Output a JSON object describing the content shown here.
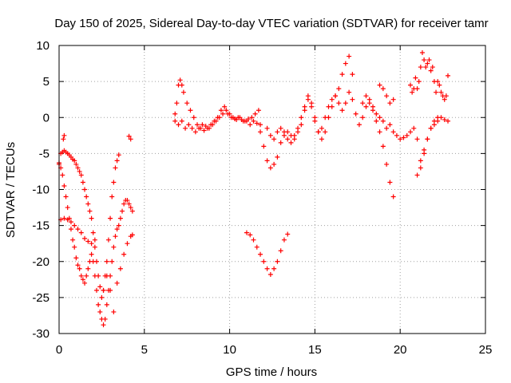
{
  "chart_data": {
    "type": "scatter",
    "title": "Day 150 of 2025, Sidereal Day-to-day VTEC variation (SDTVAR) for receiver tamr",
    "xlabel": "GPS time / hours",
    "ylabel": "SDTVAR / TECUs",
    "xlim": [
      0,
      25
    ],
    "ylim": [
      -30,
      10
    ],
    "x_ticks": [
      0,
      5,
      10,
      15,
      20,
      25
    ],
    "y_ticks": [
      -30,
      -25,
      -20,
      -15,
      -10,
      -5,
      0,
      5,
      10
    ],
    "grid": true,
    "marker": "plus",
    "color": "#ff0000",
    "series": [
      {
        "x": [
          0.0,
          0.1,
          0.2,
          0.3,
          0.4,
          0.5,
          0.6,
          0.7,
          0.8,
          0.9,
          1.0,
          1.1,
          1.2,
          1.3,
          1.4,
          1.5,
          1.6,
          1.7,
          1.8,
          1.9,
          2.0,
          2.1,
          2.2,
          2.3,
          2.4,
          2.5,
          2.6,
          2.7,
          2.8,
          2.9,
          3.0,
          3.1,
          3.2,
          3.3,
          3.4,
          3.5
        ],
        "y": [
          -6.5,
          -5.0,
          -4.8,
          -4.6,
          -4.8,
          -5.0,
          -5.2,
          -5.5,
          -5.8,
          -6.0,
          -6.5,
          -7.0,
          -7.5,
          -8.0,
          -9.0,
          -10.0,
          -11.0,
          -12.0,
          -13.0,
          -14.0,
          -16.0,
          -18.0,
          -20.0,
          -22.0,
          -23.5,
          -25.0,
          -24.0,
          -22.0,
          -20.0,
          -17.0,
          -14.0,
          -11.0,
          -9.0,
          -7.0,
          -6.0,
          -5.2
        ]
      },
      {
        "x": [
          0.0,
          0.1,
          0.2,
          0.3,
          0.4,
          0.5,
          0.6,
          0.7,
          0.8,
          0.9,
          1.0,
          1.1,
          1.2,
          1.3,
          1.4,
          1.5,
          1.6,
          1.7,
          1.8,
          1.9,
          2.0,
          2.1,
          2.2,
          2.3,
          2.4,
          2.5,
          2.6,
          2.7,
          2.8,
          2.9,
          3.0,
          3.1,
          3.2,
          3.3,
          3.4,
          3.5,
          3.6,
          3.7,
          3.8,
          3.9,
          4.0,
          4.1,
          4.2,
          4.3
        ],
        "y": [
          -6.3,
          -7.0,
          -8.0,
          -9.5,
          -11.0,
          -12.5,
          -14.0,
          -15.5,
          -17.0,
          -18.0,
          -19.5,
          -20.5,
          -21.0,
          -22.0,
          -22.5,
          -23.0,
          -22.0,
          -21.0,
          -20.0,
          -19.0,
          -20.0,
          -22.0,
          -24.0,
          -26.0,
          -27.0,
          -28.0,
          -28.8,
          -28.0,
          -26.0,
          -24.0,
          -22.0,
          -20.0,
          -18.0,
          -16.5,
          -15.5,
          -15.0,
          -14.0,
          -13.0,
          -12.0,
          -11.5,
          -11.5,
          -12.0,
          -12.5,
          -13.0
        ]
      },
      {
        "x": [
          0.1,
          0.3,
          0.5,
          0.7,
          0.9,
          1.1,
          1.3,
          1.5,
          1.7,
          1.9,
          2.1
        ],
        "y": [
          -14.2,
          -14.0,
          -14.2,
          -14.5,
          -15.0,
          -15.5,
          -16.0,
          -16.8,
          -17.2,
          -17.5,
          -17.0
        ]
      },
      {
        "x": [
          2.6,
          2.8,
          3.0,
          3.2,
          3.4,
          3.6,
          3.8,
          4.0,
          4.2,
          4.3
        ],
        "y": [
          -24.0,
          -22.0,
          -24.0,
          -27.0,
          -23.0,
          -21.0,
          -19.0,
          -17.5,
          -16.5,
          -16.3
        ]
      },
      {
        "x": [
          0.25,
          0.3,
          4.1,
          4.2
        ],
        "y": [
          -3.0,
          -2.5,
          -2.6,
          -3.0
        ]
      },
      {
        "x": [
          6.8,
          6.9,
          7.0,
          7.1,
          7.2,
          7.3,
          7.5,
          7.7,
          7.9,
          8.1,
          8.3,
          8.5,
          8.7,
          8.9,
          9.1,
          9.3,
          9.5,
          9.7,
          9.9,
          10.1,
          10.3,
          10.5,
          10.7,
          10.9,
          11.1,
          11.3,
          11.5,
          11.7
        ],
        "y": [
          0.5,
          2.0,
          4.5,
          5.2,
          4.5,
          3.5,
          2.0,
          1.0,
          0.0,
          -1.0,
          -1.5,
          -1.8,
          -1.5,
          -1.0,
          -0.5,
          0.0,
          1.0,
          1.5,
          0.5,
          0.0,
          -0.2,
          0.0,
          -0.3,
          -0.5,
          -0.2,
          0.0,
          0.5,
          1.0
        ]
      },
      {
        "x": [
          6.8,
          7.0,
          7.2,
          7.4,
          7.6,
          7.8,
          8.0,
          8.2,
          8.4,
          8.6,
          8.8,
          9.0,
          9.2,
          9.4,
          9.6,
          9.8,
          10.0,
          10.2,
          10.4,
          10.6,
          10.8,
          11.0,
          11.2,
          11.4,
          11.6,
          11.8
        ],
        "y": [
          -0.5,
          -1.0,
          -0.5,
          -1.5,
          -1.0,
          -1.5,
          -2.0,
          -1.5,
          -1.0,
          -1.2,
          -1.5,
          -1.0,
          -0.5,
          0.0,
          0.5,
          1.0,
          0.5,
          0.0,
          -0.3,
          0.0,
          -0.5,
          -0.5,
          -1.0,
          -0.5,
          -0.8,
          -1.0
        ]
      },
      {
        "x": [
          11.0,
          11.2,
          11.4,
          11.6,
          11.8,
          12.0,
          12.2,
          12.4,
          12.6,
          12.8,
          13.0,
          13.2,
          13.4
        ],
        "y": [
          -16.0,
          -16.3,
          -17.0,
          -18.0,
          -19.0,
          -20.0,
          -21.0,
          -21.8,
          -21.0,
          -20.0,
          -18.5,
          -17.0,
          -16.2
        ]
      },
      {
        "x": [
          11.8,
          12.0,
          12.2,
          12.4,
          12.6,
          12.8,
          13.0,
          13.2,
          13.4,
          13.6,
          13.8,
          14.0,
          14.2,
          14.4,
          14.6,
          14.8,
          15.0,
          15.2,
          15.4,
          15.6,
          15.8,
          16.0,
          16.2,
          16.4,
          16.6,
          16.8,
          17.0,
          17.2
        ],
        "y": [
          -2.0,
          -4.0,
          -6.0,
          -7.0,
          -6.5,
          -5.5,
          -3.5,
          -2.5,
          -2.0,
          -2.5,
          -3.0,
          -2.0,
          -1.0,
          1.0,
          3.0,
          2.0,
          0.0,
          -2.0,
          -3.0,
          -2.0,
          0.0,
          1.5,
          3.0,
          4.0,
          6.0,
          7.5,
          8.5,
          6.0
        ]
      },
      {
        "x": [
          12.2,
          12.4,
          12.6,
          12.8,
          13.0,
          13.2,
          13.4,
          13.6,
          13.8,
          14.0,
          14.2,
          14.4,
          14.6,
          14.8,
          15.0,
          15.2,
          15.4,
          15.6,
          15.8,
          16.0,
          16.2,
          16.4,
          16.6,
          16.8,
          17.0,
          17.2,
          17.4,
          17.6,
          17.8,
          18.0,
          18.2,
          18.4,
          18.6,
          18.8,
          19.0,
          19.2,
          19.4,
          19.6
        ],
        "y": [
          -1.5,
          -2.5,
          -3.0,
          -2.0,
          -1.5,
          -2.0,
          -3.0,
          -3.5,
          -2.5,
          -1.5,
          0.0,
          1.5,
          2.5,
          1.5,
          -0.5,
          -2.0,
          -1.5,
          0.0,
          1.5,
          2.5,
          3.0,
          2.0,
          1.0,
          2.0,
          3.5,
          2.5,
          0.5,
          -1.0,
          0.0,
          1.5,
          2.5,
          1.0,
          -0.5,
          -2.0,
          -4.0,
          -6.5,
          -9.0,
          -11.0
        ]
      },
      {
        "x": [
          17.8,
          18.0,
          18.2,
          18.4,
          18.6,
          18.8,
          19.0,
          19.2,
          19.4,
          19.6,
          19.8,
          20.0,
          20.2,
          20.4,
          20.6,
          20.8,
          21.0,
          21.2,
          21.4,
          21.6,
          21.8,
          22.0,
          22.2,
          22.4,
          22.6,
          22.8
        ],
        "y": [
          2.0,
          3.0,
          2.0,
          1.5,
          0.5,
          0.0,
          -0.5,
          -1.5,
          -1.0,
          -2.0,
          -2.5,
          -3.0,
          -2.8,
          -2.5,
          -2.0,
          -1.5,
          -3.0,
          -6.0,
          -4.5,
          -3.0,
          -1.5,
          -0.5,
          0.0,
          0.0,
          -0.3,
          -0.5
        ]
      },
      {
        "x": [
          18.8,
          19.0,
          19.2,
          19.4,
          19.6
        ],
        "y": [
          4.5,
          4.0,
          3.0,
          2.0,
          2.5
        ]
      },
      {
        "x": [
          20.6,
          20.7,
          20.8,
          20.9,
          21.0,
          21.1,
          21.2,
          21.3,
          21.4,
          21.5,
          21.6,
          21.7,
          21.8,
          21.9,
          22.0,
          22.1,
          22.2,
          22.3,
          22.4,
          22.5,
          22.6,
          22.7,
          22.8
        ],
        "y": [
          4.5,
          3.5,
          4.0,
          5.5,
          4.0,
          5.0,
          7.0,
          9.0,
          8.0,
          7.0,
          7.5,
          8.0,
          6.5,
          7.0,
          5.0,
          3.5,
          5.0,
          4.5,
          3.5,
          3.0,
          2.5,
          3.0,
          5.8
        ]
      },
      {
        "x": [
          21.0,
          21.2,
          21.4,
          21.6,
          21.8,
          22.0,
          22.2
        ],
        "y": [
          -8.0,
          -7.0,
          -5.0,
          -3.0,
          -1.5,
          -1.0,
          -0.5
        ]
      }
    ]
  }
}
